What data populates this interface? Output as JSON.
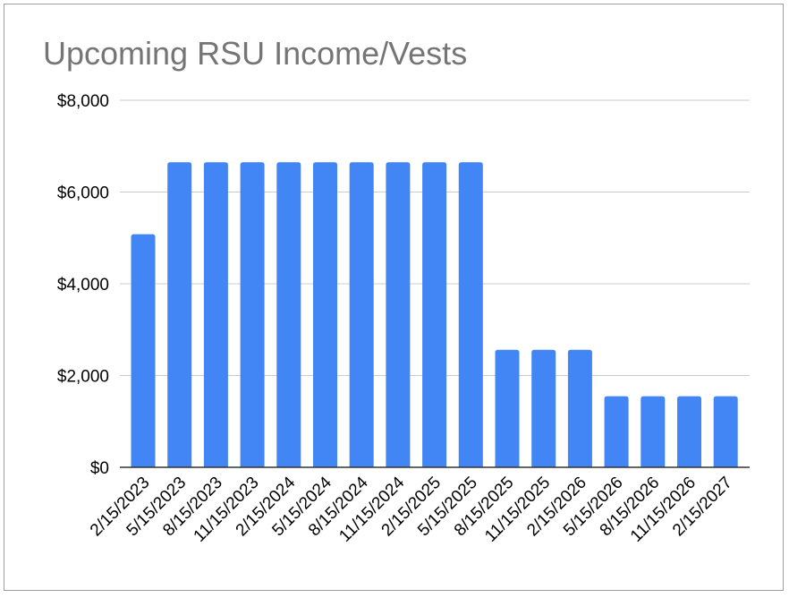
{
  "chart_data": {
    "type": "bar",
    "title": "Upcoming RSU Income/Vests",
    "xlabel": "",
    "ylabel": "",
    "ylim": [
      0,
      8000
    ],
    "yticks": [
      "$0",
      "$2,000",
      "$4,000",
      "$6,000",
      "$8,000"
    ],
    "ytick_values": [
      0,
      2000,
      4000,
      6000,
      8000
    ],
    "grid": true,
    "legend": "none",
    "bar_color": "#4285f4",
    "categories": [
      "2/15/2023",
      "5/15/2023",
      "8/15/2023",
      "11/15/2023",
      "2/15/2024",
      "5/15/2024",
      "8/15/2024",
      "11/15/2024",
      "2/15/2025",
      "5/15/2025",
      "8/15/2025",
      "11/15/2025",
      "2/15/2026",
      "5/15/2026",
      "8/15/2026",
      "11/15/2026",
      "2/15/2027"
    ],
    "values": [
      5080,
      6650,
      6650,
      6650,
      6650,
      6650,
      6650,
      6650,
      6650,
      6650,
      2560,
      2560,
      2560,
      1550,
      1550,
      1550,
      1550
    ]
  }
}
